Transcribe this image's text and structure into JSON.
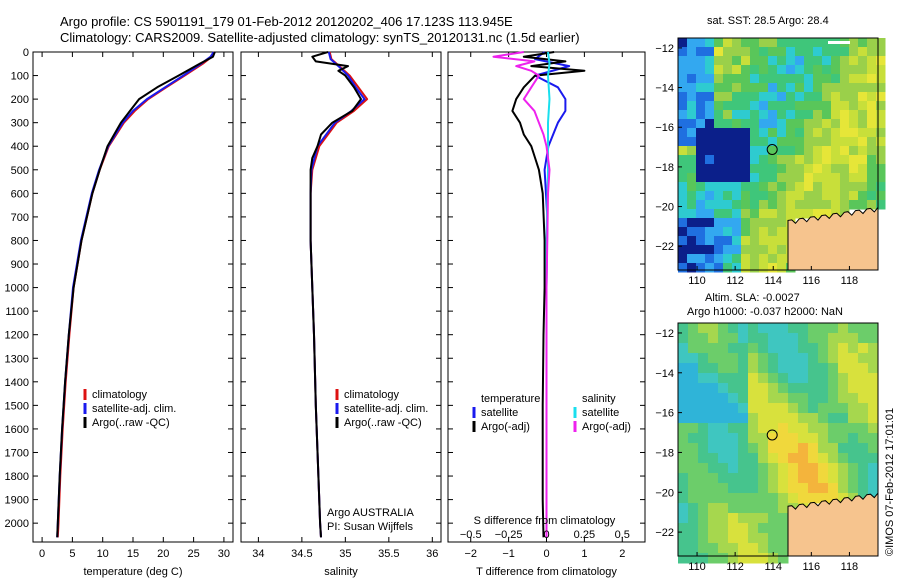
{
  "header": {
    "title_line1": "Argo profile: CS 5901191_179 01-Feb-2012 20120202_406 17.123S 113.945E",
    "title_line2": "Climatology: CARS2009. Satellite-adjusted climatology: synTS_20120131.nc (1.5d earlier)"
  },
  "colors": {
    "climatology": "#dd1111",
    "satellite": "#1a1aee",
    "argo": "#000000",
    "sal_satellite": "#19dfee",
    "sal_argo": "#ee22ee",
    "land": "#f6c48e"
  },
  "chart_data": [
    {
      "type": "line",
      "panel": "temperature",
      "xlabel": "temperature (deg C)",
      "ylabel": "",
      "xlim": [
        -1.5,
        31.5
      ],
      "ylim": [
        2080,
        0
      ],
      "xticks": [
        0,
        5,
        10,
        15,
        20,
        25,
        30
      ],
      "yticks": [
        0,
        100,
        200,
        300,
        400,
        500,
        600,
        700,
        800,
        900,
        1000,
        1100,
        1200,
        1300,
        1400,
        1500,
        1600,
        1700,
        1800,
        1900,
        2000
      ],
      "legend": [
        "climatology",
        "satellite-adj. clim.",
        "Argo(..raw -QC)"
      ],
      "series": [
        {
          "name": "climatology",
          "depth": [
            0,
            20,
            50,
            100,
            150,
            200,
            250,
            300,
            400,
            500,
            600,
            800,
            1000,
            1200,
            1400,
            1600,
            1800,
            2000,
            2060
          ],
          "values": [
            28.4,
            28.0,
            26.5,
            23.5,
            20.5,
            17.5,
            15.3,
            13.5,
            11.0,
            9.5,
            8.3,
            6.5,
            5.2,
            4.5,
            3.9,
            3.4,
            3.0,
            2.7,
            2.6
          ]
        },
        {
          "name": "satellite-adj. clim.",
          "depth": [
            0,
            20,
            50,
            100,
            150,
            200,
            250,
            300,
            400,
            500,
            600,
            800,
            1000,
            1200,
            1400,
            1600,
            1800,
            2000,
            2060
          ],
          "values": [
            28.3,
            27.8,
            26.2,
            23.3,
            20.3,
            17.3,
            15.0,
            13.3,
            10.9,
            9.4,
            8.2,
            6.4,
            5.1,
            4.4,
            3.8,
            3.3,
            2.9,
            2.6,
            2.5
          ]
        },
        {
          "name": "Argo(..raw -QC)",
          "depth": [
            0,
            20,
            50,
            100,
            150,
            200,
            250,
            300,
            400,
            500,
            600,
            800,
            1000,
            1200,
            1400,
            1600,
            1800,
            2000,
            2060
          ],
          "values": [
            28.5,
            28.2,
            26.0,
            22.5,
            19.0,
            16.0,
            14.5,
            13.0,
            10.8,
            9.5,
            8.3,
            6.5,
            5.2,
            4.4,
            3.8,
            3.3,
            2.9,
            2.6,
            2.5
          ]
        }
      ]
    },
    {
      "type": "line",
      "panel": "salinity",
      "xlabel": "salinity",
      "ylabel": "",
      "xlim": [
        33.8,
        36.1
      ],
      "ylim": [
        2080,
        0
      ],
      "xticks": [
        34,
        34.5,
        35,
        35.5,
        36
      ],
      "legend": [
        "climatology",
        "satellite-adj. clim.",
        "Argo(..raw -QC)"
      ],
      "annotation": [
        "Argo AUSTRALIA",
        "PI: Susan Wijffels"
      ],
      "series": [
        {
          "name": "climatology",
          "depth": [
            0,
            30,
            60,
            100,
            150,
            200,
            250,
            300,
            400,
            500,
            600,
            800,
            1000,
            1200,
            1500,
            1800,
            2000,
            2060
          ],
          "values": [
            34.82,
            34.84,
            34.93,
            35.05,
            35.15,
            35.25,
            35.1,
            34.9,
            34.7,
            34.62,
            34.6,
            34.6,
            34.62,
            34.64,
            34.66,
            34.69,
            34.71,
            34.72
          ]
        },
        {
          "name": "satellite-adj. clim.",
          "depth": [
            0,
            30,
            60,
            100,
            150,
            200,
            250,
            300,
            400,
            500,
            600,
            800,
            1000,
            1200,
            1500,
            1800,
            2000,
            2060
          ],
          "values": [
            34.81,
            34.83,
            34.92,
            35.03,
            35.12,
            35.22,
            35.07,
            34.88,
            34.68,
            34.61,
            34.6,
            34.6,
            34.62,
            34.64,
            34.66,
            34.69,
            34.71,
            34.72
          ]
        },
        {
          "name": "Argo(..raw -QC)",
          "depth": [
            0,
            20,
            40,
            60,
            80,
            100,
            150,
            200,
            250,
            300,
            350,
            400,
            450,
            500,
            600,
            800,
            1000,
            1200,
            1500,
            1800,
            2000,
            2060
          ],
          "values": [
            34.8,
            34.62,
            34.66,
            35.03,
            34.92,
            35.0,
            35.1,
            35.18,
            35.08,
            34.85,
            34.72,
            34.68,
            34.62,
            34.6,
            34.6,
            34.6,
            34.62,
            34.64,
            34.66,
            34.69,
            34.71,
            34.72
          ]
        }
      ]
    },
    {
      "type": "line",
      "panel": "difference",
      "xlabel": "T difference from climatology",
      "xlabel_top": "S difference from climatology",
      "xlim": [
        -2.6,
        2.6
      ],
      "ylim": [
        2080,
        0
      ],
      "xticks": [
        -2,
        -1,
        0,
        1,
        2
      ],
      "xticks_top": [
        -0.5,
        -0.25,
        0,
        0.25,
        0.5
      ],
      "legend_t": {
        "header": "temperature",
        "items": [
          "satellite",
          "Argo(-adj)"
        ]
      },
      "legend_s": {
        "header": "salinity",
        "items": [
          "satellite",
          "Argo(-adj)"
        ]
      },
      "series": [
        {
          "name": "temperature satellite",
          "depth": [
            0,
            30,
            60,
            100,
            150,
            200,
            250,
            300,
            400,
            500,
            700,
            1000,
            1500,
            2060
          ],
          "values": [
            -0.05,
            -0.3,
            0.6,
            -0.3,
            0.3,
            0.5,
            0.5,
            0.3,
            0.05,
            -0.05,
            0.02,
            0,
            0,
            0
          ]
        },
        {
          "name": "temperature Argo(-adj)",
          "depth": [
            0,
            20,
            40,
            60,
            80,
            100,
            150,
            200,
            250,
            300,
            350,
            400,
            450,
            500,
            600,
            800,
            1000,
            1200,
            1500,
            1800,
            1900,
            2060
          ],
          "values": [
            0.2,
            -0.6,
            0.5,
            -0.4,
            1.0,
            -0.3,
            -0.6,
            -0.8,
            -0.9,
            -0.7,
            -0.6,
            -0.4,
            -0.3,
            -0.2,
            -0.1,
            -0.05,
            -0.05,
            -0.08,
            -0.1,
            -0.1,
            -0.1,
            -0.08
          ]
        },
        {
          "name": "salinity satellite",
          "depth": [
            0,
            50,
            100,
            200,
            300,
            500,
            800,
            1200,
            1600,
            2060
          ],
          "values": [
            0.01,
            0.02,
            0.01,
            0.02,
            0.01,
            0.01,
            0,
            0,
            0,
            0
          ]
        },
        {
          "name": "salinity Argo(-adj)",
          "depth": [
            0,
            20,
            40,
            60,
            80,
            100,
            150,
            200,
            250,
            300,
            350,
            400,
            500,
            600,
            800,
            1000,
            1200,
            1500,
            1800,
            2060
          ],
          "values": [
            -0.15,
            -0.35,
            -0.08,
            -0.2,
            -0.1,
            -0.05,
            -0.1,
            -0.15,
            -0.08,
            -0.05,
            -0.02,
            0,
            0.02,
            0.01,
            0.005,
            0,
            0,
            0,
            0,
            0
          ]
        }
      ]
    },
    {
      "type": "heatmap",
      "panel": "sst-map",
      "title": "sat. SST: 28.5 Argo: 28.4",
      "xlim": [
        109,
        119.5
      ],
      "ylim": [
        -23.2,
        -11.5
      ],
      "xticks": [
        110,
        112,
        114,
        116,
        118
      ],
      "yticks": [
        -12,
        -14,
        -16,
        -18,
        -20,
        -22
      ],
      "marker": {
        "lon": 113.945,
        "lat": -17.123
      }
    },
    {
      "type": "heatmap",
      "panel": "sla-map",
      "title": "Altim. SLA: -0.0027",
      "subtitle": "Argo h1000: -0.037 h2000: NaN",
      "xlim": [
        109,
        119.5
      ],
      "ylim": [
        -23.2,
        -11.5
      ],
      "xticks": [
        110,
        112,
        114,
        116,
        118
      ],
      "yticks": [
        -12,
        -14,
        -16,
        -18,
        -20,
        -22
      ],
      "marker": {
        "lon": 113.945,
        "lat": -17.123
      }
    }
  ],
  "credit": "©IMOS 07-Feb-2012 17:01:01"
}
